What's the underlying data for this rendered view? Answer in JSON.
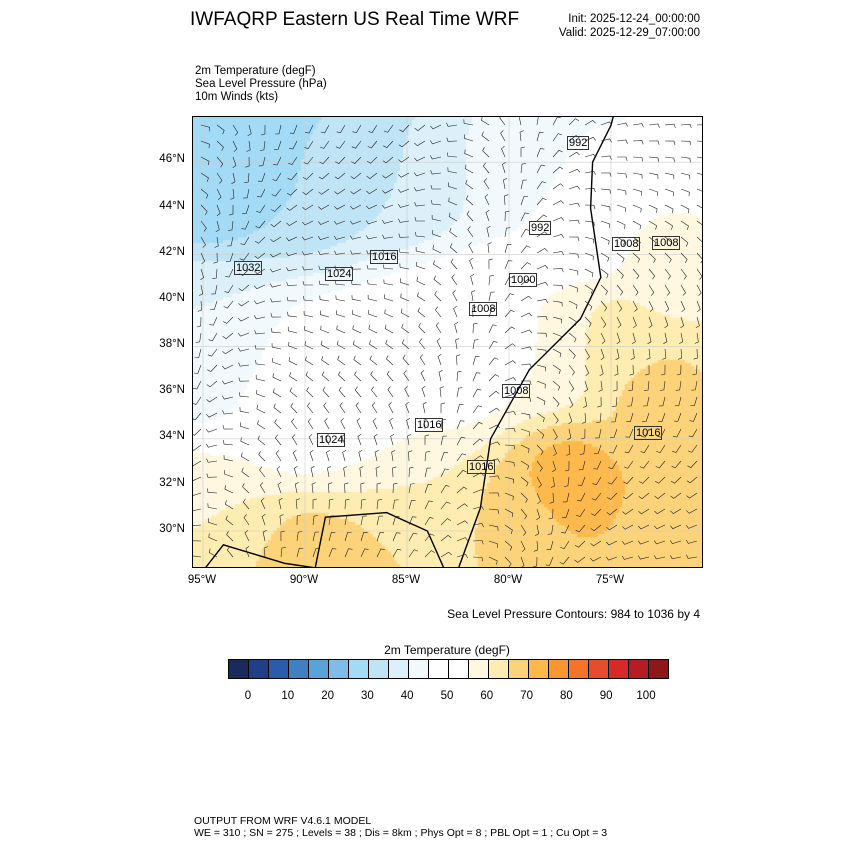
{
  "header": {
    "title": "IWFAQRP Eastern US Real Time WRF",
    "init": "Init: 2025-12-24_00:00:00",
    "valid": "Valid: 2025-12-29_07:00:00"
  },
  "fields": [
    "2m Temperature   (degF)",
    "Sea Level Pressure   (hPa)",
    "10m Winds   (kts)"
  ],
  "map": {
    "lat_ticks": [
      "46°N",
      "44°N",
      "42°N",
      "40°N",
      "38°N",
      "36°N",
      "34°N",
      "32°N",
      "30°N"
    ],
    "lon_ticks": [
      "95°W",
      "90°W",
      "85°W",
      "80°W",
      "75°W"
    ],
    "contour_note": "Sea Level Pressure Contours: 984 to 1036 by 4",
    "contour_labels": [
      "992",
      "992",
      "1008",
      "1008",
      "1000",
      "1008",
      "1016",
      "1024",
      "1032",
      "1008",
      "1016",
      "1024",
      "1016",
      "1016"
    ]
  },
  "colorbar": {
    "title": "2m Temperature  (degF)",
    "labels": [
      "0",
      "10",
      "20",
      "30",
      "40",
      "50",
      "60",
      "70",
      "80",
      "90",
      "100"
    ],
    "colors": [
      "#1b2a5c",
      "#213f87",
      "#2a5cad",
      "#3f80c2",
      "#58a3d8",
      "#7dbde7",
      "#a3daf6",
      "#bfe4f5",
      "#dbf0f8",
      "#f1f9fd",
      "#ffffff",
      "#ffffff",
      "#fff7e0",
      "#feecb0",
      "#fdd37a",
      "#fdb94b",
      "#fa962f",
      "#f4742c",
      "#e84c2c",
      "#d52a27",
      "#b41d24",
      "#8e1719"
    ]
  },
  "footer": {
    "line1": "OUTPUT FROM WRF V4.6.1 MODEL",
    "line2": "WE = 310 ; SN = 275 ; Levels = 38 ; Dis = 8km ; Phys Opt = 8 ; PBL Opt = 1 ; Cu Opt = 3"
  }
}
